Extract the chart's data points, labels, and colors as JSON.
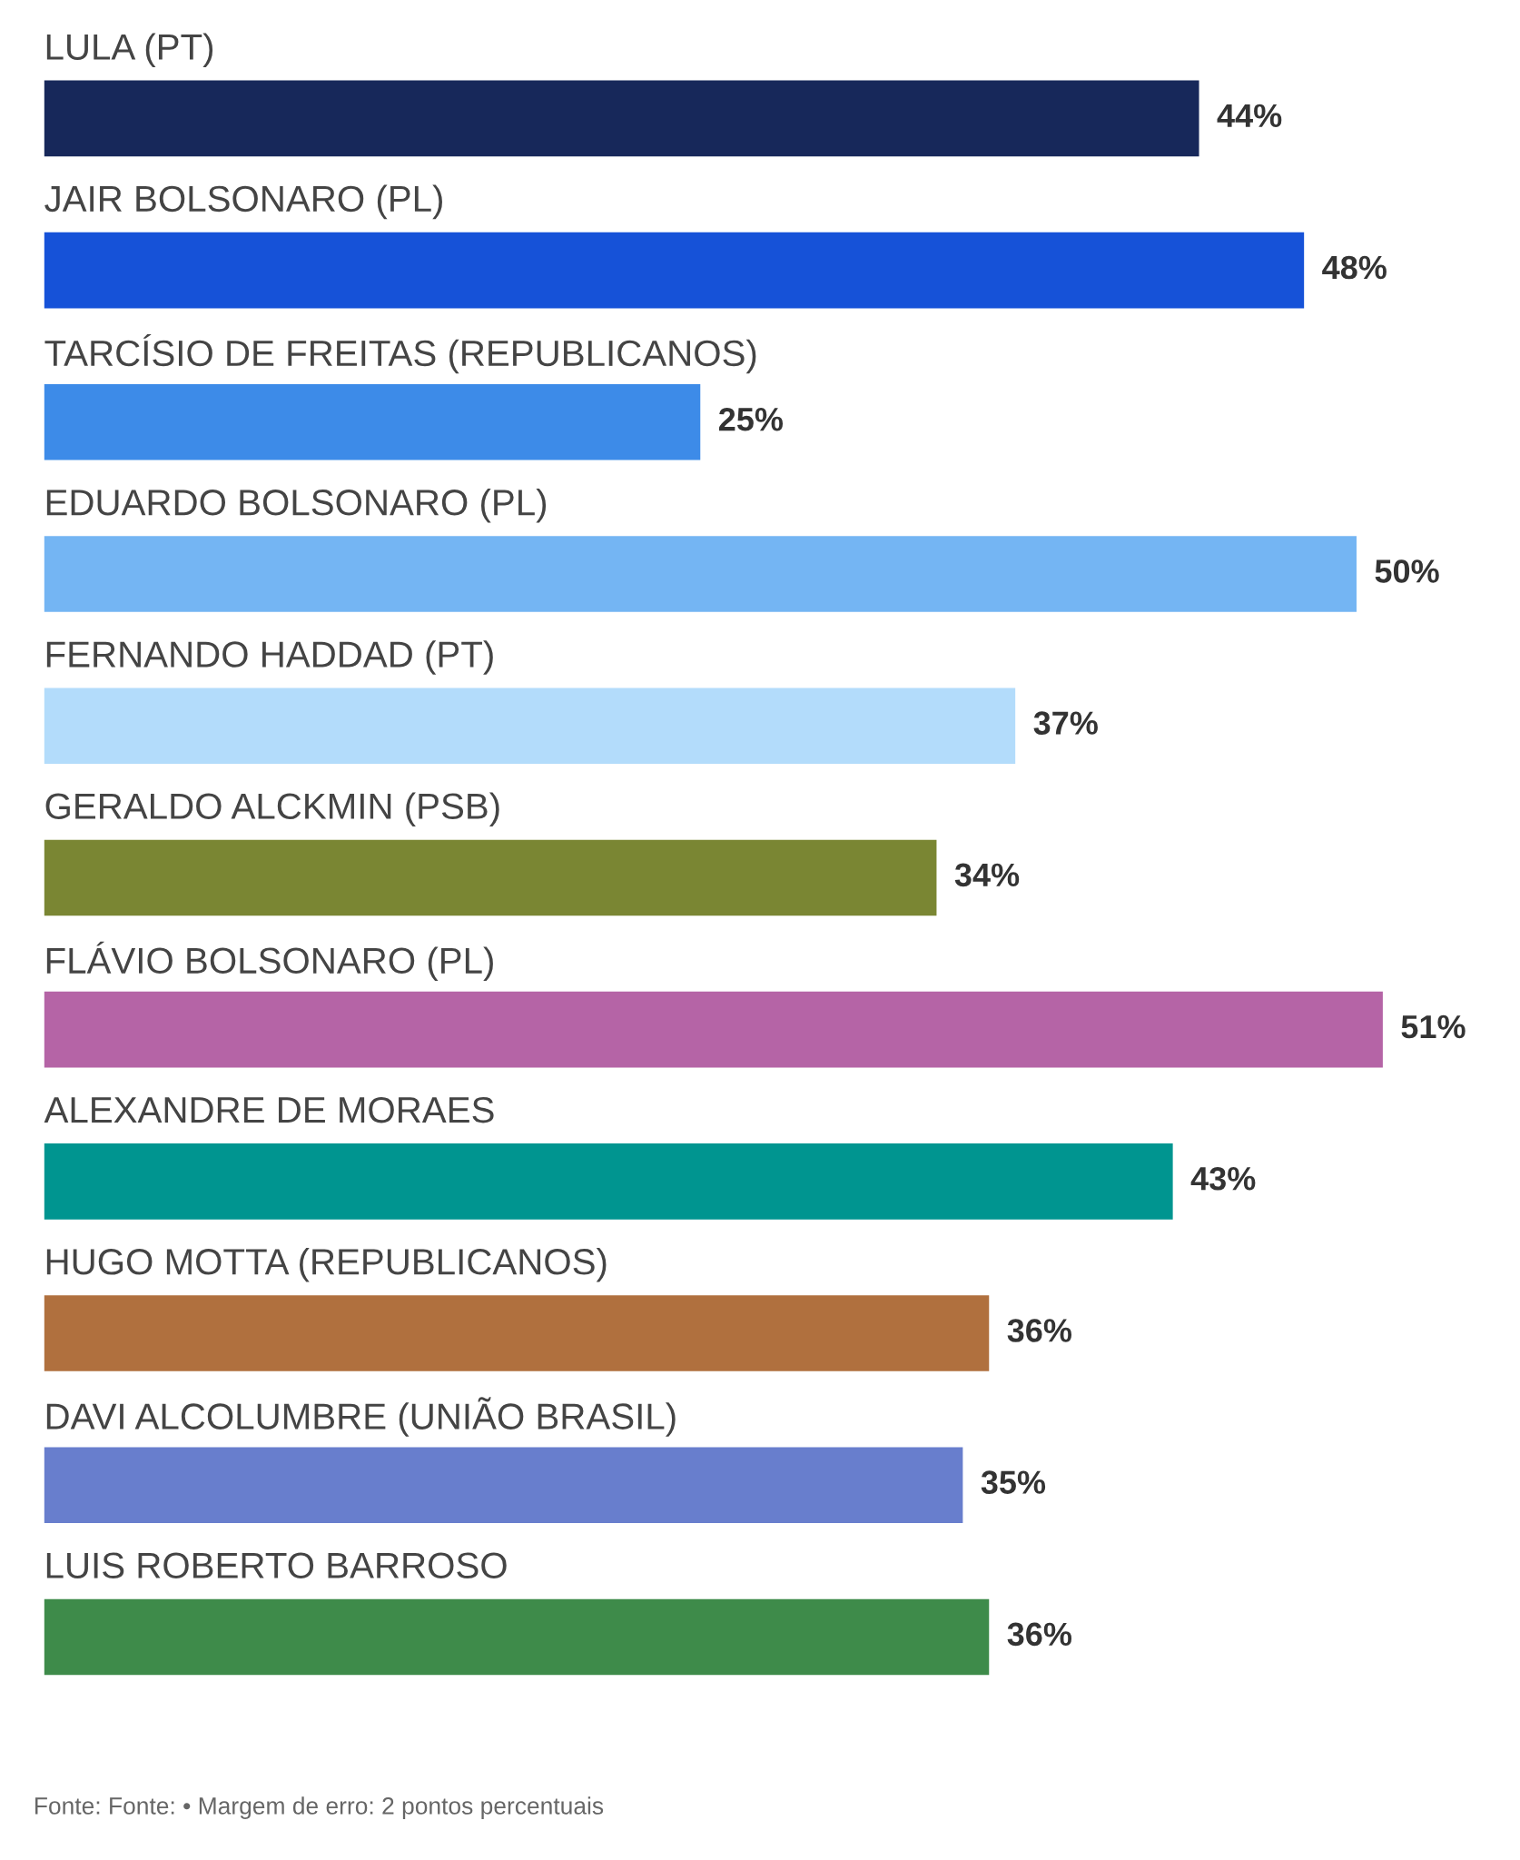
{
  "chart_data": {
    "type": "bar",
    "orientation": "horizontal",
    "value_labels": [
      "44%",
      "48%",
      "25%",
      "50%",
      "37%",
      "34%",
      "51%",
      "43%",
      "36%",
      "35%",
      "36%"
    ],
    "categories": [
      "LULA (PT)",
      "JAIR BOLSONARO (PL)",
      "TARCÍSIO DE FREITAS (REPUBLICANOS)",
      "EDUARDO BOLSONARO (PL)",
      "FERNANDO HADDAD (PT)",
      "GERALDO ALCKMIN (PSB)",
      "FLÁVIO BOLSONARO (PL)",
      "ALEXANDRE DE MORAES",
      "HUGO MOTTA (REPUBLICANOS)",
      "DAVI ALCOLUMBRE (UNIÃO BRASIL)",
      "LUIS ROBERTO BARROSO"
    ],
    "values": [
      44,
      48,
      25,
      50,
      37,
      34,
      51,
      43,
      36,
      35,
      36
    ],
    "colors": [
      "#17285a",
      "#1652d8",
      "#3d8be8",
      "#74b5f3",
      "#b3dcfb",
      "#7a8633",
      "#b564a6",
      "#009590",
      "#b0703e",
      "#687ecd",
      "#3e8b4a"
    ],
    "annotations": [
      "Fonte: Fonte: • Margem de erro: 2 pontos percentuais"
    ]
  }
}
